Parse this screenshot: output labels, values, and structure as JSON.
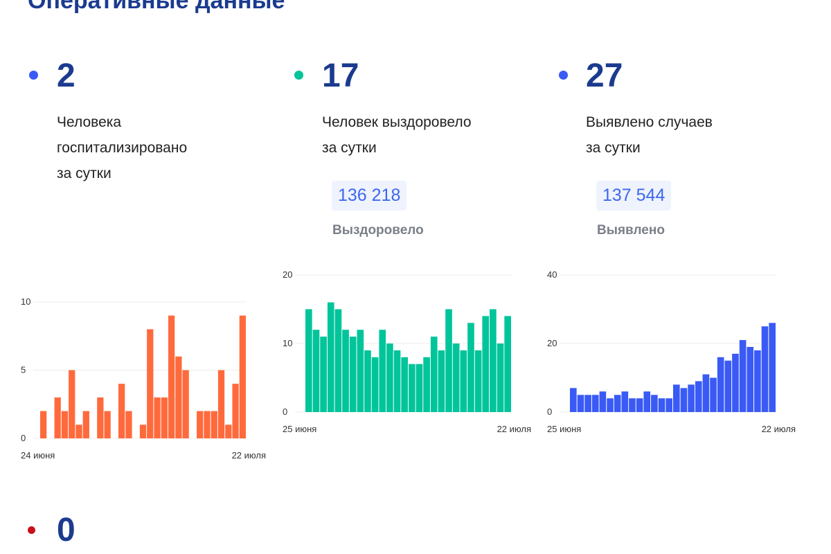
{
  "title": "Оперативные данные",
  "colors": {
    "title": "#1b3b8f",
    "hospitalized": "#ff6a3d",
    "recovered": "#00c49a",
    "cases": "#3a5af5",
    "deaths_dot": "#c8101a"
  },
  "cards": [
    {
      "value": "2",
      "label_lines": [
        "Человека",
        "госпитализировано",
        "за сутки"
      ],
      "dot_color": "#3a5af5"
    },
    {
      "value": "17",
      "label_lines": [
        "Человек выздоровело",
        "за сутки"
      ],
      "total": "136 218",
      "total_label": "Выздоровело",
      "dot_color": "#00c49a"
    },
    {
      "value": "27",
      "label_lines": [
        "Выявлено случаев",
        "за сутки"
      ],
      "total": "137 544",
      "total_label": "Выявлено",
      "dot_color": "#3a5af5"
    },
    {
      "value": "0",
      "dot_color": "#c8101a"
    }
  ],
  "chart_data": [
    {
      "type": "bar",
      "color": "#ff6a3d",
      "x_start_label": "24 июня",
      "x_end_label": "22 июля",
      "ylim": [
        0,
        10
      ],
      "yticks": [
        "0",
        "5",
        "10"
      ],
      "grid": true,
      "values": [
        2,
        0,
        3,
        2,
        5,
        1,
        2,
        0,
        3,
        2,
        0,
        4,
        2,
        0,
        1,
        8,
        3,
        3,
        9,
        6,
        5,
        0,
        2,
        2,
        2,
        5,
        1,
        4,
        9
      ]
    },
    {
      "type": "bar",
      "color": "#00c49a",
      "x_start_label": "25 июня",
      "x_end_label": "22 июля",
      "ylim": [
        0,
        20
      ],
      "yticks": [
        "0",
        "10",
        "20"
      ],
      "grid": true,
      "values": [
        15,
        12,
        11,
        16,
        15,
        12,
        11,
        12,
        9,
        8,
        12,
        10,
        9,
        8,
        7,
        7,
        8,
        11,
        9,
        15,
        10,
        9,
        13,
        9,
        14,
        15,
        10,
        14
      ]
    },
    {
      "type": "bar",
      "color": "#3a5af5",
      "x_start_label": "25 июня",
      "x_end_label": "22 июля",
      "ylim": [
        0,
        40
      ],
      "yticks": [
        "0",
        "20",
        "40"
      ],
      "grid": true,
      "values": [
        7,
        5,
        5,
        5,
        6,
        4,
        5,
        6,
        4,
        4,
        6,
        5,
        4,
        4,
        8,
        7,
        8,
        9,
        11,
        10,
        16,
        15,
        17,
        21,
        19,
        18,
        25,
        26
      ]
    }
  ]
}
